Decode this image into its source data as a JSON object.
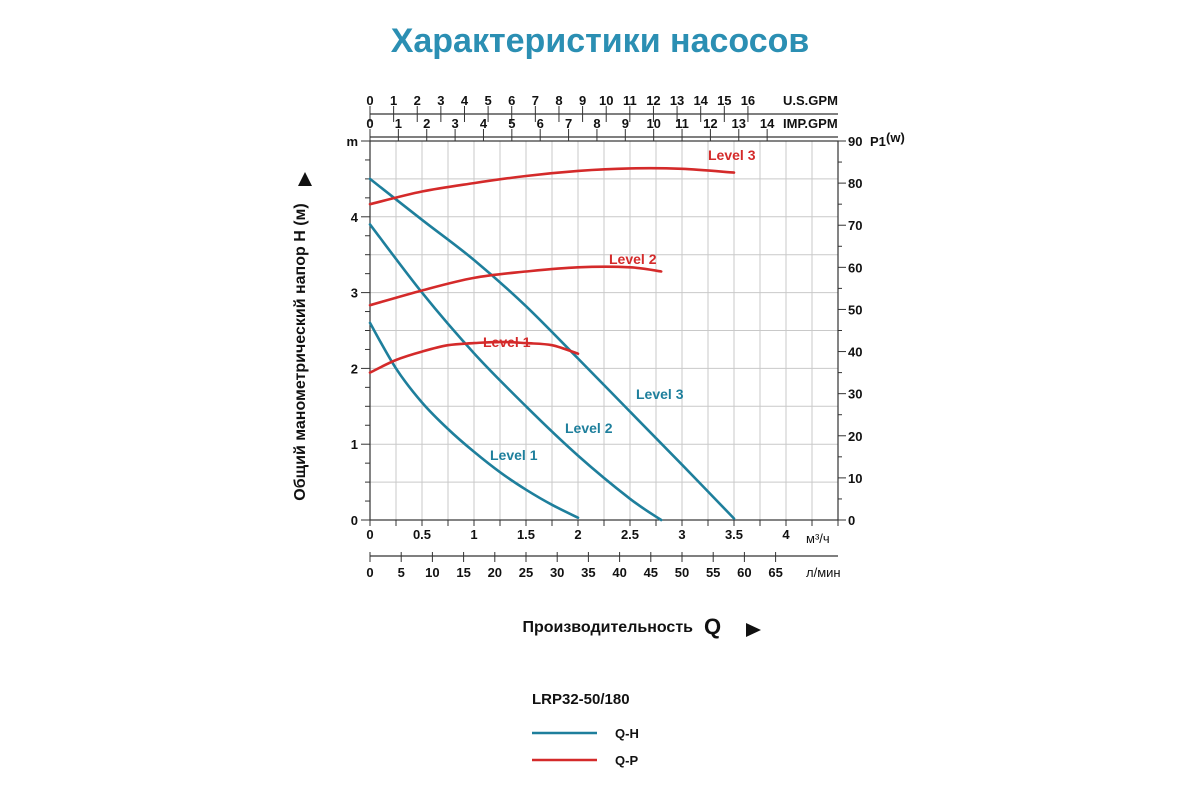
{
  "page": {
    "title": "Характеристики насосов"
  },
  "chart_data": {
    "type": "line",
    "model": "LRP32-50/180",
    "x_axis": {
      "label": "Производительность",
      "symbol": "Q",
      "unit": "м³/ч",
      "range": [
        0,
        4.5
      ],
      "ticks": [
        "0",
        "0.5",
        "1",
        "1.5",
        "2",
        "2.5",
        "3",
        "3.5",
        "4"
      ],
      "tick_values": [
        0,
        0.5,
        1,
        1.5,
        2,
        2.5,
        3,
        3.5,
        4
      ]
    },
    "x_axis_lpm": {
      "unit": "л/мин",
      "ticks": [
        "0",
        "5",
        "10",
        "15",
        "20",
        "25",
        "30",
        "35",
        "40",
        "45",
        "50",
        "55",
        "60",
        "65"
      ],
      "tick_values": [
        0,
        5,
        10,
        15,
        20,
        25,
        30,
        35,
        40,
        45,
        50,
        55,
        60,
        65
      ]
    },
    "x_axis_usgpm": {
      "unit": "U.S.GPM",
      "ticks": [
        "0",
        "1",
        "2",
        "3",
        "4",
        "5",
        "6",
        "7",
        "8",
        "9",
        "10",
        "11",
        "12",
        "13",
        "14",
        "15",
        "16"
      ],
      "tick_values": [
        0,
        1,
        2,
        3,
        4,
        5,
        6,
        7,
        8,
        9,
        10,
        11,
        12,
        13,
        14,
        15,
        16
      ]
    },
    "x_axis_impgpm": {
      "unit": "IMP.GPM",
      "ticks": [
        "0",
        "1",
        "2",
        "3",
        "4",
        "5",
        "6",
        "7",
        "8",
        "9",
        "10",
        "11",
        "12",
        "13",
        "14"
      ],
      "tick_values": [
        0,
        1,
        2,
        3,
        4,
        5,
        6,
        7,
        8,
        9,
        10,
        11,
        12,
        13,
        14
      ]
    },
    "y_axis": {
      "label": "Общий манометрический напор H (м)",
      "unit": "m",
      "range": [
        0,
        5
      ],
      "ticks": [
        "0",
        "1",
        "2",
        "3",
        "4"
      ],
      "tick_values": [
        0,
        1,
        2,
        3,
        4
      ]
    },
    "y2_axis": {
      "label": "P1",
      "unit": "(w)",
      "range": [
        0,
        90
      ],
      "ticks": [
        "0",
        "10",
        "20",
        "30",
        "40",
        "50",
        "60",
        "70",
        "80",
        "90"
      ],
      "tick_values": [
        0,
        10,
        20,
        30,
        40,
        50,
        60,
        70,
        80,
        90
      ]
    },
    "grid": true,
    "series": [
      {
        "name": "Level 1",
        "kind": "Q-H",
        "color": "#1e7f9c",
        "x": [
          0,
          0.25,
          0.5,
          0.75,
          1.0,
          1.25,
          1.5,
          1.75,
          2.0
        ],
        "y": [
          2.6,
          2.0,
          1.55,
          1.2,
          0.9,
          0.63,
          0.4,
          0.2,
          0.03
        ]
      },
      {
        "name": "Level 2",
        "kind": "Q-H",
        "color": "#1e7f9c",
        "x": [
          0,
          0.5,
          1.0,
          1.5,
          2.0,
          2.5,
          2.8
        ],
        "y": [
          3.9,
          3.0,
          2.2,
          1.5,
          0.85,
          0.28,
          0.0
        ]
      },
      {
        "name": "Level 3",
        "kind": "Q-H",
        "color": "#1e7f9c",
        "x": [
          0,
          0.5,
          1.0,
          1.5,
          2.0,
          2.5,
          3.0,
          3.5
        ],
        "y": [
          4.5,
          3.96,
          3.43,
          2.82,
          2.13,
          1.43,
          0.73,
          0.02
        ]
      },
      {
        "name": "Level 1",
        "kind": "Q-P",
        "color": "#d42a2a",
        "x": [
          0,
          0.25,
          0.5,
          0.75,
          1.0,
          1.25,
          1.5,
          1.75,
          2.0
        ],
        "y": [
          35,
          38,
          40,
          41.5,
          42,
          42.3,
          42,
          41.5,
          39.5
        ]
      },
      {
        "name": "Level 2",
        "kind": "Q-P",
        "color": "#d42a2a",
        "x": [
          0,
          0.5,
          1.0,
          1.5,
          2.0,
          2.5,
          2.8
        ],
        "y": [
          51,
          54.5,
          57.5,
          59,
          60,
          60,
          59
        ]
      },
      {
        "name": "Level 3",
        "kind": "Q-P",
        "color": "#d42a2a",
        "x": [
          0,
          0.5,
          1.0,
          1.5,
          2.0,
          2.5,
          3.0,
          3.5
        ],
        "y": [
          75,
          78,
          80,
          81.7,
          82.9,
          83.5,
          83.4,
          82.5
        ]
      }
    ],
    "legend": {
      "title": "LRP32-50/180",
      "placement": "bottom-center",
      "items": [
        {
          "label": "Q-H",
          "color": "#1e7f9c"
        },
        {
          "label": "Q-P",
          "color": "#d42a2a"
        }
      ]
    }
  }
}
